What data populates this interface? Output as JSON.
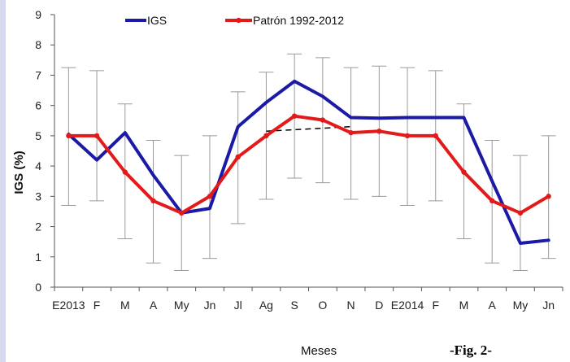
{
  "chart_data": {
    "type": "line",
    "title": "",
    "xlabel": "Meses",
    "ylabel": "IGS (%)",
    "ylim": [
      0,
      9
    ],
    "yticks": [
      0,
      1,
      2,
      3,
      4,
      5,
      6,
      7,
      8,
      9
    ],
    "categories": [
      "E2013",
      "F",
      "M",
      "A",
      "My",
      "Jn",
      "Jl",
      "Ag",
      "S",
      "O",
      "N",
      "D",
      "E2014",
      "F",
      "M",
      "A",
      "My",
      "Jn"
    ],
    "legend_position": "top",
    "grid": false,
    "series": [
      {
        "name": "IGS",
        "color": "#1a1aa6",
        "marker": false,
        "values": [
          5.05,
          4.2,
          5.1,
          3.7,
          2.45,
          2.6,
          5.3,
          6.1,
          6.8,
          6.3,
          5.6,
          5.58,
          5.6,
          5.6,
          5.6,
          3.5,
          1.45,
          1.55
        ]
      },
      {
        "name": "Patrón  1992-2012",
        "color": "#e41a1a",
        "marker": true,
        "values": [
          5.0,
          5.0,
          3.8,
          2.85,
          2.45,
          3.0,
          4.3,
          5.0,
          5.65,
          5.52,
          5.1,
          5.15,
          5.0,
          5.0,
          3.8,
          2.85,
          2.45,
          3.0
        ],
        "error_high": [
          7.25,
          7.15,
          6.05,
          4.85,
          4.35,
          5.0,
          6.45,
          7.1,
          7.7,
          7.58,
          7.25,
          7.3,
          7.25,
          7.15,
          6.05,
          4.85,
          4.35,
          5.0
        ],
        "error_low": [
          2.7,
          2.85,
          1.6,
          0.8,
          0.55,
          0.95,
          2.1,
          2.9,
          3.6,
          3.45,
          2.9,
          3.0,
          2.7,
          2.85,
          1.6,
          0.8,
          0.55,
          0.95
        ]
      }
    ],
    "annotations": [
      {
        "type": "dashed-line",
        "color": "#000000",
        "from": {
          "x": "Ag",
          "y": 5.15
        },
        "to": {
          "x": "N",
          "y": 5.3
        }
      }
    ]
  },
  "figure_label": "-Fig. 2-"
}
